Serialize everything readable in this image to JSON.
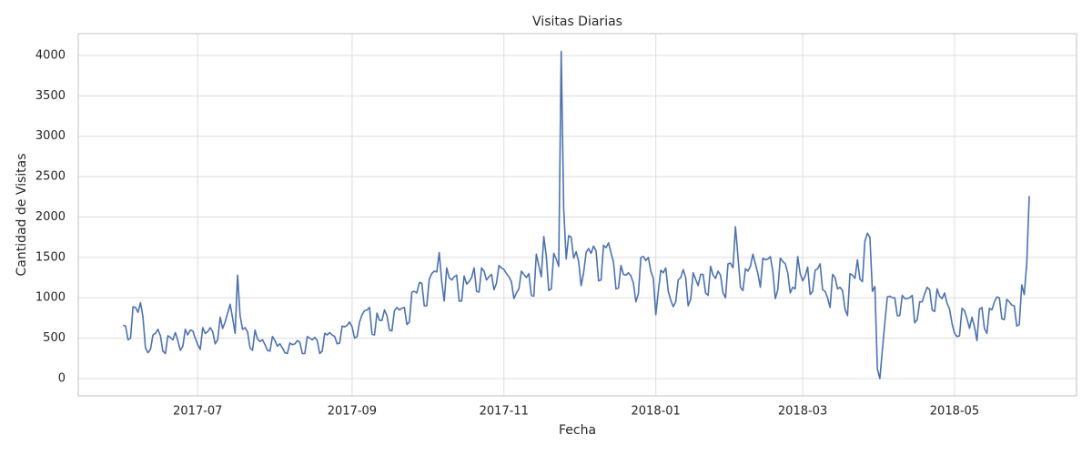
{
  "chart_data": {
    "type": "line",
    "title": "Visitas Diarias",
    "x_label": "Fecha",
    "y_label": "Cantidad de Visitas",
    "x": [
      "2017-06-01",
      "2017-06-02",
      "2017-06-03",
      "2017-06-04",
      "2017-06-05",
      "2017-06-06",
      "2017-06-07",
      "2017-06-08",
      "2017-06-09",
      "2017-06-10",
      "2017-06-11",
      "2017-06-12",
      "2017-06-13",
      "2017-06-14",
      "2017-06-15",
      "2017-06-16",
      "2017-06-17",
      "2017-06-18",
      "2017-06-19",
      "2017-06-20",
      "2017-06-21",
      "2017-06-22",
      "2017-06-23",
      "2017-06-24",
      "2017-06-25",
      "2017-06-26",
      "2017-06-27",
      "2017-06-28",
      "2017-06-29",
      "2017-06-30",
      "2017-07-01",
      "2017-07-02",
      "2017-07-03",
      "2017-07-04",
      "2017-07-05",
      "2017-07-06",
      "2017-07-07",
      "2017-07-08",
      "2017-07-09",
      "2017-07-10",
      "2017-07-11",
      "2017-07-12",
      "2017-07-13",
      "2017-07-14",
      "2017-07-15",
      "2017-07-16",
      "2017-07-17",
      "2017-07-18",
      "2017-07-19",
      "2017-07-20",
      "2017-07-21",
      "2017-07-22",
      "2017-07-23",
      "2017-07-24",
      "2017-07-25",
      "2017-07-26",
      "2017-07-27",
      "2017-07-28",
      "2017-07-29",
      "2017-07-30",
      "2017-07-31",
      "2017-08-01",
      "2017-08-02",
      "2017-08-03",
      "2017-08-04",
      "2017-08-05",
      "2017-08-06",
      "2017-08-07",
      "2017-08-08",
      "2017-08-09",
      "2017-08-10",
      "2017-08-11",
      "2017-08-12",
      "2017-08-13",
      "2017-08-14",
      "2017-08-15",
      "2017-08-16",
      "2017-08-17",
      "2017-08-18",
      "2017-08-19",
      "2017-08-20",
      "2017-08-21",
      "2017-08-22",
      "2017-08-23",
      "2017-08-24",
      "2017-08-25",
      "2017-08-26",
      "2017-08-27",
      "2017-08-28",
      "2017-08-29",
      "2017-08-30",
      "2017-08-31",
      "2017-09-01",
      "2017-09-02",
      "2017-09-03",
      "2017-09-04",
      "2017-09-05",
      "2017-09-06",
      "2017-09-07",
      "2017-09-08",
      "2017-09-09",
      "2017-09-10",
      "2017-09-11",
      "2017-09-12",
      "2017-09-13",
      "2017-09-14",
      "2017-09-15",
      "2017-09-16",
      "2017-09-17",
      "2017-09-18",
      "2017-09-19",
      "2017-09-20",
      "2017-09-21",
      "2017-09-22",
      "2017-09-23",
      "2017-09-24",
      "2017-09-25",
      "2017-09-26",
      "2017-09-27",
      "2017-09-28",
      "2017-09-29",
      "2017-09-30",
      "2017-10-01",
      "2017-10-02",
      "2017-10-03",
      "2017-10-04",
      "2017-10-05",
      "2017-10-06",
      "2017-10-07",
      "2017-10-08",
      "2017-10-09",
      "2017-10-10",
      "2017-10-11",
      "2017-10-12",
      "2017-10-13",
      "2017-10-14",
      "2017-10-15",
      "2017-10-16",
      "2017-10-17",
      "2017-10-18",
      "2017-10-19",
      "2017-10-20",
      "2017-10-21",
      "2017-10-22",
      "2017-10-23",
      "2017-10-24",
      "2017-10-25",
      "2017-10-26",
      "2017-10-27",
      "2017-10-28",
      "2017-10-29",
      "2017-10-30",
      "2017-10-31",
      "2017-11-01",
      "2017-11-02",
      "2017-11-03",
      "2017-11-04",
      "2017-11-05",
      "2017-11-06",
      "2017-11-07",
      "2017-11-08",
      "2017-11-09",
      "2017-11-10",
      "2017-11-11",
      "2017-11-12",
      "2017-11-13",
      "2017-11-14",
      "2017-11-15",
      "2017-11-16",
      "2017-11-17",
      "2017-11-18",
      "2017-11-19",
      "2017-11-20",
      "2017-11-21",
      "2017-11-22",
      "2017-11-23",
      "2017-11-24",
      "2017-11-25",
      "2017-11-26",
      "2017-11-27",
      "2017-11-28",
      "2017-11-29",
      "2017-11-30",
      "2017-12-01",
      "2017-12-02",
      "2017-12-03",
      "2017-12-04",
      "2017-12-05",
      "2017-12-06",
      "2017-12-07",
      "2017-12-08",
      "2017-12-09",
      "2017-12-10",
      "2017-12-11",
      "2017-12-12",
      "2017-12-13",
      "2017-12-14",
      "2017-12-15",
      "2017-12-16",
      "2017-12-17",
      "2017-12-18",
      "2017-12-19",
      "2017-12-20",
      "2017-12-21",
      "2017-12-22",
      "2017-12-23",
      "2017-12-24",
      "2017-12-25",
      "2017-12-26",
      "2017-12-27",
      "2017-12-28",
      "2017-12-29",
      "2017-12-30",
      "2017-12-31",
      "2018-01-01",
      "2018-01-02",
      "2018-01-03",
      "2018-01-04",
      "2018-01-05",
      "2018-01-06",
      "2018-01-07",
      "2018-01-08",
      "2018-01-09",
      "2018-01-10",
      "2018-01-11",
      "2018-01-12",
      "2018-01-13",
      "2018-01-14",
      "2018-01-15",
      "2018-01-16",
      "2018-01-17",
      "2018-01-18",
      "2018-01-19",
      "2018-01-20",
      "2018-01-21",
      "2018-01-22",
      "2018-01-23",
      "2018-01-24",
      "2018-01-25",
      "2018-01-26",
      "2018-01-27",
      "2018-01-28",
      "2018-01-29",
      "2018-01-30",
      "2018-01-31",
      "2018-02-01",
      "2018-02-02",
      "2018-02-03",
      "2018-02-04",
      "2018-02-05",
      "2018-02-06",
      "2018-02-07",
      "2018-02-08",
      "2018-02-09",
      "2018-02-10",
      "2018-02-11",
      "2018-02-12",
      "2018-02-13",
      "2018-02-14",
      "2018-02-15",
      "2018-02-16",
      "2018-02-17",
      "2018-02-18",
      "2018-02-19",
      "2018-02-20",
      "2018-02-21",
      "2018-02-22",
      "2018-02-23",
      "2018-02-24",
      "2018-02-25",
      "2018-02-26",
      "2018-02-27",
      "2018-02-28",
      "2018-03-01",
      "2018-03-02",
      "2018-03-03",
      "2018-03-04",
      "2018-03-05",
      "2018-03-06",
      "2018-03-07",
      "2018-03-08",
      "2018-03-09",
      "2018-03-10",
      "2018-03-11",
      "2018-03-12",
      "2018-03-13",
      "2018-03-14",
      "2018-03-15",
      "2018-03-16",
      "2018-03-17",
      "2018-03-18",
      "2018-03-19",
      "2018-03-20",
      "2018-03-21",
      "2018-03-22",
      "2018-03-23",
      "2018-03-24",
      "2018-03-25",
      "2018-03-26",
      "2018-03-27",
      "2018-03-28",
      "2018-03-29",
      "2018-03-30",
      "2018-03-31",
      "2018-04-01",
      "2018-04-02",
      "2018-04-03",
      "2018-04-04",
      "2018-04-05",
      "2018-04-06",
      "2018-04-07",
      "2018-04-08",
      "2018-04-09",
      "2018-04-10",
      "2018-04-11",
      "2018-04-12",
      "2018-04-13",
      "2018-04-14",
      "2018-04-15",
      "2018-04-16",
      "2018-04-17",
      "2018-04-18",
      "2018-04-19",
      "2018-04-20",
      "2018-04-21",
      "2018-04-22",
      "2018-04-23",
      "2018-04-24",
      "2018-04-25",
      "2018-04-26",
      "2018-04-27",
      "2018-04-28",
      "2018-04-29",
      "2018-04-30",
      "2018-05-01",
      "2018-05-02",
      "2018-05-03",
      "2018-05-04",
      "2018-05-05",
      "2018-05-06",
      "2018-05-07",
      "2018-05-08",
      "2018-05-09",
      "2018-05-10",
      "2018-05-11",
      "2018-05-12",
      "2018-05-13",
      "2018-05-14",
      "2018-05-15",
      "2018-05-16",
      "2018-05-17",
      "2018-05-18",
      "2018-05-19",
      "2018-05-20",
      "2018-05-21",
      "2018-05-22",
      "2018-05-23",
      "2018-05-24",
      "2018-05-25",
      "2018-05-26",
      "2018-05-27",
      "2018-05-28",
      "2018-05-29",
      "2018-05-30",
      "2018-05-31"
    ],
    "series": [
      {
        "name": "Visitas",
        "color": "#4c72b0",
        "values": [
          660,
          650,
          480,
          500,
          890,
          880,
          820,
          940,
          760,
          380,
          320,
          360,
          540,
          560,
          610,
          530,
          340,
          310,
          530,
          510,
          480,
          570,
          470,
          350,
          400,
          610,
          540,
          600,
          590,
          500,
          420,
          360,
          630,
          560,
          580,
          630,
          580,
          430,
          480,
          760,
          620,
          700,
          810,
          920,
          750,
          560,
          1280,
          780,
          610,
          630,
          580,
          380,
          350,
          600,
          490,
          460,
          480,
          420,
          350,
          340,
          520,
          470,
          400,
          430,
          380,
          320,
          310,
          440,
          420,
          430,
          470,
          450,
          310,
          310,
          520,
          500,
          480,
          510,
          470,
          310,
          340,
          560,
          540,
          570,
          540,
          520,
          430,
          440,
          650,
          640,
          660,
          700,
          640,
          500,
          520,
          700,
          790,
          840,
          850,
          880,
          550,
          540,
          810,
          720,
          720,
          850,
          780,
          600,
          590,
          840,
          880,
          850,
          870,
          880,
          670,
          700,
          1070,
          1080,
          1060,
          1190,
          1180,
          900,
          900,
          1230,
          1300,
          1330,
          1320,
          1560,
          1200,
          960,
          1370,
          1250,
          1220,
          1260,
          1280,
          960,
          960,
          1270,
          1170,
          1200,
          1250,
          1370,
          1080,
          1070,
          1370,
          1330,
          1220,
          1260,
          1290,
          1100,
          1180,
          1400,
          1370,
          1350,
          1300,
          1260,
          1200,
          990,
          1060,
          1110,
          1330,
          1290,
          1250,
          1300,
          1030,
          1020,
          1540,
          1400,
          1260,
          1760,
          1520,
          1090,
          1110,
          1550,
          1480,
          1390,
          4050,
          2100,
          1480,
          1770,
          1750,
          1490,
          1570,
          1450,
          1150,
          1310,
          1560,
          1610,
          1550,
          1640,
          1580,
          1210,
          1220,
          1650,
          1620,
          1680,
          1560,
          1440,
          1110,
          1120,
          1400,
          1290,
          1280,
          1310,
          1270,
          1180,
          950,
          1050,
          1500,
          1510,
          1460,
          1500,
          1330,
          1240,
          790,
          1080,
          1340,
          1310,
          1370,
          1080,
          970,
          890,
          950,
          1220,
          1250,
          1350,
          1250,
          900,
          980,
          1310,
          1230,
          1150,
          1290,
          1290,
          1060,
          1030,
          1390,
          1280,
          1240,
          1330,
          1280,
          1060,
          1000,
          1420,
          1430,
          1370,
          1880,
          1510,
          1130,
          1090,
          1360,
          1330,
          1390,
          1540,
          1420,
          1300,
          1130,
          1490,
          1470,
          1480,
          1510,
          1330,
          990,
          1100,
          1490,
          1450,
          1420,
          1310,
          1060,
          1130,
          1110,
          1510,
          1300,
          1210,
          1270,
          1380,
          1040,
          1080,
          1340,
          1360,
          1420,
          1100,
          1080,
          1000,
          880,
          1290,
          1250,
          1110,
          1130,
          1090,
          860,
          780,
          1300,
          1280,
          1240,
          1470,
          1230,
          1200,
          1700,
          1800,
          1750,
          1080,
          1140,
          120,
          0,
          350,
          690,
          1010,
          1020,
          1000,
          1000,
          780,
          780,
          1030,
          990,
          990,
          1000,
          1030,
          690,
          730,
          950,
          950,
          1050,
          1130,
          1100,
          850,
          830,
          1110,
          1020,
          990,
          1060,
          930,
          860,
          680,
          560,
          520,
          530,
          870,
          840,
          740,
          620,
          760,
          640,
          470,
          860,
          880,
          620,
          560,
          870,
          850,
          950,
          1010,
          1000,
          740,
          730,
          980,
          950,
          910,
          900,
          650,
          670,
          1160,
          1040,
          1420,
          2260
        ]
      }
    ],
    "xlim": [
      "2017-05-14",
      "2018-06-19"
    ],
    "xticks": [
      {
        "value": "2017-07-01",
        "label": "2017-07"
      },
      {
        "value": "2017-09-01",
        "label": "2017-09"
      },
      {
        "value": "2017-11-01",
        "label": "2017-11"
      },
      {
        "value": "2018-01-01",
        "label": "2018-01"
      },
      {
        "value": "2018-03-01",
        "label": "2018-03"
      },
      {
        "value": "2018-05-01",
        "label": "2018-05"
      }
    ],
    "ylim": [
      -214,
      4270
    ],
    "yticks": [
      0,
      500,
      1000,
      1500,
      2000,
      2500,
      3000,
      3500,
      4000
    ],
    "grid": true
  }
}
